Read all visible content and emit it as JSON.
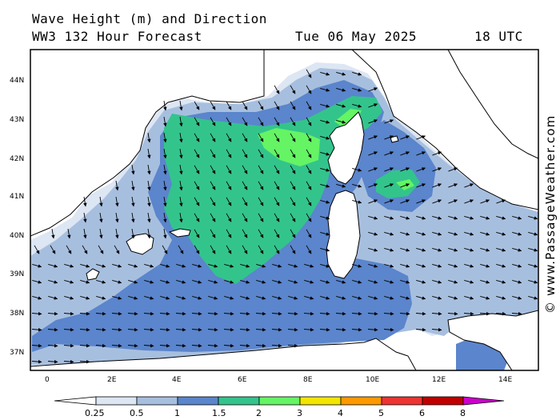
{
  "header": {
    "title": "Wave Height (m) and Direction",
    "model": "WW3 132 Hour Forecast",
    "date": "Tue 06 May 2025",
    "time": "18 UTC"
  },
  "credit": "© www.PassageWeather.com",
  "map": {
    "lat_labels": [
      "44N",
      "43N",
      "42N",
      "41N",
      "40N",
      "39N",
      "38N",
      "37N"
    ],
    "lon_labels": [
      "0",
      "2E",
      "4E",
      "6E",
      "8E",
      "10E",
      "12E",
      "14E"
    ]
  },
  "colorbar": {
    "labels": [
      "0.25",
      "0.5",
      "1",
      "1.5",
      "2",
      "3",
      "4",
      "5",
      "6",
      "8"
    ],
    "colors": [
      "#ffffff",
      "#dde6f3",
      "#a7bfdf",
      "#5b85cc",
      "#33c48c",
      "#64f464",
      "#f2e600",
      "#ff9900",
      "#ee3333",
      "#c00000",
      "#cc00cc"
    ]
  }
}
